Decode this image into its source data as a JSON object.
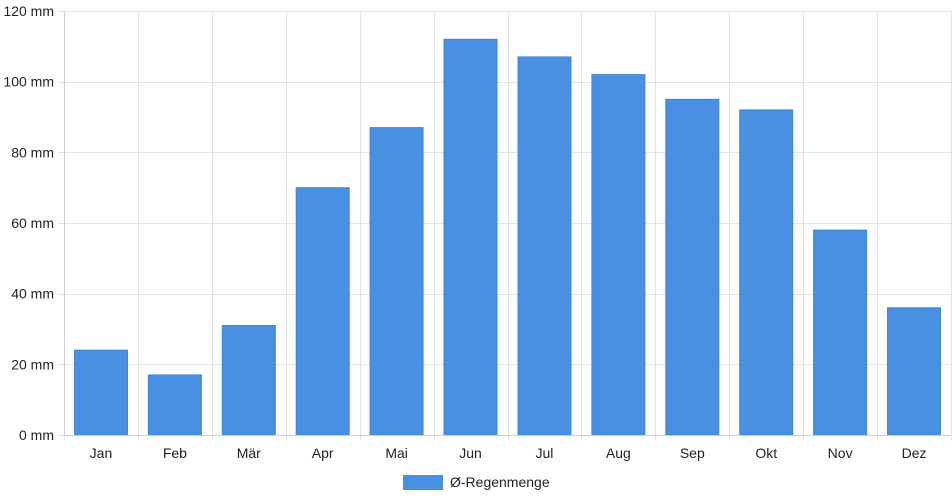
{
  "chart_data": {
    "type": "bar",
    "categories": [
      "Jan",
      "Feb",
      "Mär",
      "Apr",
      "Mai",
      "Jun",
      "Jul",
      "Aug",
      "Sep",
      "Okt",
      "Nov",
      "Dez"
    ],
    "series": [
      {
        "name": "Ø-Regenmenge",
        "values": [
          24,
          17,
          31,
          70,
          87,
          112,
          107,
          102,
          95,
          92,
          58,
          36
        ],
        "color": "#4a90e2"
      }
    ],
    "ylim": [
      0,
      120
    ],
    "yticks": [
      0,
      20,
      40,
      60,
      80,
      100,
      120
    ],
    "yunit": "mm",
    "grid": true,
    "legend": "bottom-center"
  }
}
